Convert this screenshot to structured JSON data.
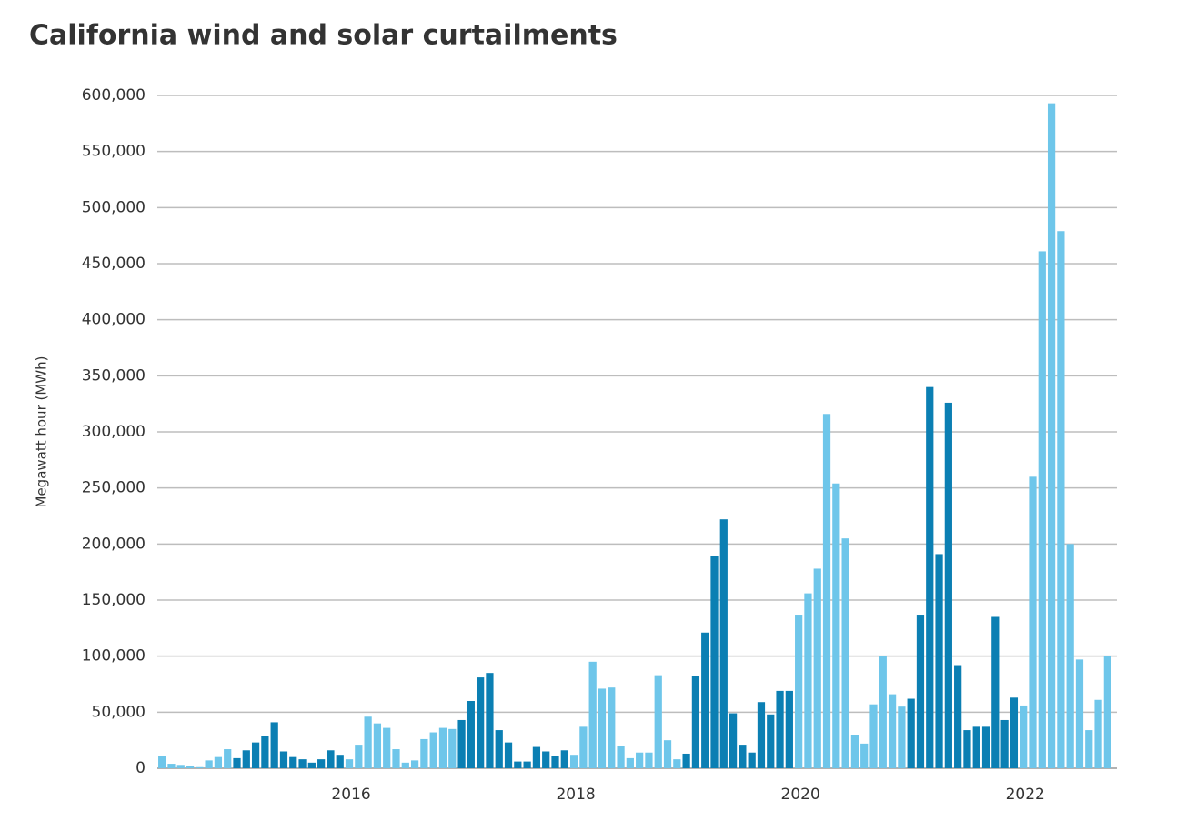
{
  "chart_data": {
    "type": "bar",
    "title": "California wind and solar curtailments",
    "ylabel": "Megawatt hour (MWh)",
    "categories": [
      null,
      null,
      null,
      null,
      null,
      null,
      null,
      null,
      null,
      null,
      null,
      null,
      null,
      null,
      null,
      null,
      null,
      null,
      null,
      null,
      "2016",
      null,
      null,
      null,
      null,
      null,
      null,
      null,
      null,
      null,
      null,
      null,
      null,
      null,
      null,
      null,
      null,
      null,
      null,
      null,
      null,
      null,
      null,
      null,
      "2018",
      null,
      null,
      null,
      null,
      null,
      null,
      null,
      null,
      null,
      null,
      null,
      null,
      null,
      null,
      null,
      null,
      null,
      null,
      null,
      null,
      null,
      null,
      null,
      "2020",
      null,
      null,
      null,
      null,
      null,
      null,
      null,
      null,
      null,
      null,
      null,
      null,
      null,
      null,
      null,
      null,
      null,
      null,
      null,
      null,
      null,
      null,
      null,
      "2022",
      null,
      null,
      null,
      null,
      null,
      null,
      null,
      null,
      null
    ],
    "values": [
      11000,
      4000,
      3000,
      2000,
      1000,
      7000,
      10000,
      17000,
      9000,
      16000,
      23000,
      29000,
      41000,
      15000,
      10000,
      8000,
      5000,
      8000,
      16000,
      12000,
      8000,
      21000,
      46000,
      40000,
      36000,
      17000,
      5000,
      7000,
      26000,
      32000,
      36000,
      35000,
      43000,
      60000,
      81000,
      85000,
      34000,
      23000,
      6000,
      6000,
      19000,
      15000,
      11000,
      16000,
      12000,
      37000,
      95000,
      71000,
      72000,
      20000,
      9000,
      14000,
      14000,
      83000,
      25000,
      8000,
      13000,
      82000,
      121000,
      189000,
      222000,
      49000,
      21000,
      14000,
      59000,
      48000,
      69000,
      69000,
      137000,
      156000,
      178000,
      316000,
      254000,
      205000,
      30000,
      22000,
      57000,
      100000,
      66000,
      55000,
      62000,
      137000,
      340000,
      191000,
      326000,
      92000,
      34000,
      37000,
      37000,
      135000,
      43000,
      63000,
      56000,
      260000,
      461000,
      593000,
      479000,
      200000,
      97000,
      34000,
      61000,
      100000
    ],
    "colors": [
      "#6ec6ea",
      "#6ec6ea",
      "#6ec6ea",
      "#6ec6ea",
      "#6ec6ea",
      "#6ec6ea",
      "#6ec6ea",
      "#6ec6ea",
      "#0b7fb3",
      "#0b7fb3",
      "#0b7fb3",
      "#0b7fb3",
      "#0b7fb3",
      "#0b7fb3",
      "#0b7fb3",
      "#0b7fb3",
      "#0b7fb3",
      "#0b7fb3",
      "#0b7fb3",
      "#0b7fb3",
      "#6ec6ea",
      "#6ec6ea",
      "#6ec6ea",
      "#6ec6ea",
      "#6ec6ea",
      "#6ec6ea",
      "#6ec6ea",
      "#6ec6ea",
      "#6ec6ea",
      "#6ec6ea",
      "#6ec6ea",
      "#6ec6ea",
      "#0b7fb3",
      "#0b7fb3",
      "#0b7fb3",
      "#0b7fb3",
      "#0b7fb3",
      "#0b7fb3",
      "#0b7fb3",
      "#0b7fb3",
      "#0b7fb3",
      "#0b7fb3",
      "#0b7fb3",
      "#0b7fb3",
      "#6ec6ea",
      "#6ec6ea",
      "#6ec6ea",
      "#6ec6ea",
      "#6ec6ea",
      "#6ec6ea",
      "#6ec6ea",
      "#6ec6ea",
      "#6ec6ea",
      "#6ec6ea",
      "#6ec6ea",
      "#6ec6ea",
      "#0b7fb3",
      "#0b7fb3",
      "#0b7fb3",
      "#0b7fb3",
      "#0b7fb3",
      "#0b7fb3",
      "#0b7fb3",
      "#0b7fb3",
      "#0b7fb3",
      "#0b7fb3",
      "#0b7fb3",
      "#0b7fb3",
      "#6ec6ea",
      "#6ec6ea",
      "#6ec6ea",
      "#6ec6ea",
      "#6ec6ea",
      "#6ec6ea",
      "#6ec6ea",
      "#6ec6ea",
      "#6ec6ea",
      "#6ec6ea",
      "#6ec6ea",
      "#6ec6ea",
      "#0b7fb3",
      "#0b7fb3",
      "#0b7fb3",
      "#0b7fb3",
      "#0b7fb3",
      "#0b7fb3",
      "#0b7fb3",
      "#0b7fb3",
      "#0b7fb3",
      "#0b7fb3",
      "#0b7fb3",
      "#0b7fb3",
      "#6ec6ea",
      "#6ec6ea",
      "#6ec6ea",
      "#6ec6ea",
      "#6ec6ea",
      "#6ec6ea",
      "#6ec6ea",
      "#6ec6ea",
      "#6ec6ea",
      "#6ec6ea"
    ],
    "ylim": [
      0,
      600000
    ],
    "yticks": [
      0,
      {
        "value": 50000,
        "label": "50,000"
      },
      {
        "value": 100000,
        "label": "100,000"
      },
      {
        "value": 150000,
        "label": "150,000"
      },
      {
        "value": 200000,
        "label": "200,000"
      },
      {
        "value": 250000,
        "label": "250,000"
      },
      {
        "value": 300000,
        "label": "300,000"
      },
      {
        "value": 350000,
        "label": "350,000"
      },
      {
        "value": 400000,
        "label": "400,000"
      },
      {
        "value": 450000,
        "label": "450,000"
      },
      {
        "value": 500000,
        "label": "500,000"
      },
      {
        "value": 550000,
        "label": "550,000"
      },
      {
        "value": 600000,
        "label": "600,000"
      }
    ],
    "grid": true
  }
}
